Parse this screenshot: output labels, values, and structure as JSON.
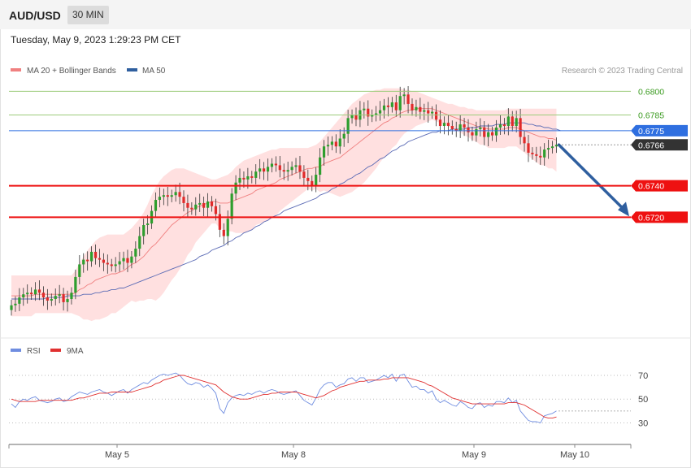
{
  "header": {
    "symbol": "AUD/USD",
    "timeframe": "30 MIN",
    "datetime": "Tuesday, May 9, 2023 1:29:23 PM CET"
  },
  "legend": {
    "ma20": "MA 20 + Bollinger Bands",
    "ma50": "MA 50",
    "credit": "Research © 2023 Trading Central",
    "rsi": "RSI",
    "rsi_ma": "9MA"
  },
  "colors": {
    "up": "#2e9e2e",
    "down": "#e02a2a",
    "ma20": "#f08080",
    "ma50": "#5b6bb5",
    "band": "#ffd6d6",
    "resistance": "#9ccc7a",
    "pivot": "#2f6fe0",
    "support": "#ee1111",
    "last": "#333333",
    "arrow": "#2f5f9f",
    "rsi": "#6f8de0",
    "rsi_ma": "#e03030"
  },
  "chart_data": [
    {
      "type": "candlestick",
      "title": "AUD/USD",
      "ylim": [
        0.6652,
        0.6809
      ],
      "x_labels": [
        "May 5",
        "May 8",
        "May 9",
        "May 10"
      ],
      "levels": [
        {
          "value": 0.68,
          "label": "0.6800",
          "kind": "resistance"
        },
        {
          "value": 0.6785,
          "label": "0.6785",
          "kind": "resistance"
        },
        {
          "value": 0.6775,
          "label": "0.6775",
          "kind": "pivot"
        },
        {
          "value": 0.6766,
          "label": "0.6766",
          "kind": "last"
        },
        {
          "value": 0.674,
          "label": "0.6740",
          "kind": "support"
        },
        {
          "value": 0.672,
          "label": "0.6720",
          "kind": "support"
        }
      ],
      "forecast_arrow": {
        "from": 0.6766,
        "to": 0.672
      },
      "close": [
        0.6664,
        0.6665,
        0.6669,
        0.6671,
        0.6672,
        0.6671,
        0.6674,
        0.6672,
        0.6669,
        0.6667,
        0.6668,
        0.667,
        0.6671,
        0.6666,
        0.6668,
        0.6672,
        0.6682,
        0.669,
        0.6693,
        0.6692,
        0.6698,
        0.6694,
        0.6693,
        0.6691,
        0.669,
        0.6689,
        0.669,
        0.6692,
        0.6694,
        0.6691,
        0.6695,
        0.67,
        0.6708,
        0.6715,
        0.6716,
        0.6724,
        0.6731,
        0.6733,
        0.6734,
        0.6733,
        0.6734,
        0.6736,
        0.6733,
        0.6729,
        0.6726,
        0.6725,
        0.6728,
        0.6729,
        0.6726,
        0.673,
        0.6727,
        0.6722,
        0.6712,
        0.6708,
        0.6719,
        0.6735,
        0.6742,
        0.6745,
        0.6744,
        0.6746,
        0.6745,
        0.6749,
        0.6751,
        0.6749,
        0.6752,
        0.6754,
        0.6753,
        0.675,
        0.6749,
        0.675,
        0.6752,
        0.6753,
        0.6749,
        0.6745,
        0.6743,
        0.674,
        0.6747,
        0.6758,
        0.6765,
        0.6766,
        0.6768,
        0.6765,
        0.677,
        0.6773,
        0.6783,
        0.6785,
        0.6782,
        0.6788,
        0.6789,
        0.6784,
        0.6785,
        0.6786,
        0.6788,
        0.6791,
        0.679,
        0.6793,
        0.6788,
        0.6797,
        0.6798,
        0.6792,
        0.6788,
        0.679,
        0.6787,
        0.6788,
        0.6786,
        0.6787,
        0.6782,
        0.6778,
        0.678,
        0.6778,
        0.6776,
        0.6775,
        0.6779,
        0.6777,
        0.6774,
        0.6772,
        0.6776,
        0.6777,
        0.6771,
        0.6774,
        0.6772,
        0.6777,
        0.6779,
        0.6778,
        0.6784,
        0.6778,
        0.6783,
        0.6771,
        0.6767,
        0.6761,
        0.676,
        0.6759,
        0.6758,
        0.6763,
        0.6764,
        0.6765,
        0.6766
      ],
      "ma20": [
        0.667,
        0.667,
        0.667,
        0.667,
        0.667,
        0.667,
        0.6671,
        0.6671,
        0.6671,
        0.6671,
        0.6671,
        0.6671,
        0.6671,
        0.6671,
        0.6671,
        0.6671,
        0.6672,
        0.6674,
        0.6675,
        0.6677,
        0.6678,
        0.668,
        0.6681,
        0.6682,
        0.6683,
        0.6684,
        0.6684,
        0.6685,
        0.6686,
        0.6688,
        0.669,
        0.6691,
        0.6693,
        0.6695,
        0.6698,
        0.6701,
        0.6703,
        0.6706,
        0.6709,
        0.6712,
        0.6715,
        0.6717,
        0.6719,
        0.6721,
        0.6723,
        0.6724,
        0.6726,
        0.6727,
        0.6728,
        0.6729,
        0.673,
        0.673,
        0.6729,
        0.6729,
        0.6729,
        0.673,
        0.6731,
        0.6732,
        0.6733,
        0.6734,
        0.6735,
        0.6737,
        0.6738,
        0.6739,
        0.674,
        0.6741,
        0.6742,
        0.6744,
        0.6745,
        0.6746,
        0.6747,
        0.6748,
        0.6749,
        0.675,
        0.6751,
        0.6751,
        0.6752,
        0.6752,
        0.6754,
        0.6755,
        0.6756,
        0.6757,
        0.6758,
        0.676,
        0.6762,
        0.6764,
        0.6766,
        0.6768,
        0.677,
        0.6772,
        0.6774,
        0.6776,
        0.6778,
        0.678,
        0.6781,
        0.6783,
        0.6784,
        0.6786,
        0.6787,
        0.6788,
        0.6788,
        0.6789,
        0.6789,
        0.6789,
        0.6789,
        0.6789,
        0.6788,
        0.6787,
        0.6786,
        0.6785,
        0.6784,
        0.6783,
        0.6782,
        0.6781,
        0.678,
        0.6779,
        0.6778,
        0.6777,
        0.6777,
        0.6776,
        0.6776,
        0.6776,
        0.6776,
        0.6776,
        0.6777,
        0.6777,
        0.6777,
        0.6776,
        0.6775,
        0.6774,
        0.6773,
        0.6772,
        0.6771,
        0.6771,
        0.677,
        0.677,
        0.6769
      ],
      "ma50": [
        0.6668,
        0.6668,
        0.6668,
        0.6668,
        0.6668,
        0.6668,
        0.6668,
        0.6668,
        0.6668,
        0.6669,
        0.6669,
        0.6669,
        0.6669,
        0.6669,
        0.667,
        0.667,
        0.667,
        0.667,
        0.6671,
        0.6671,
        0.6671,
        0.6672,
        0.6672,
        0.6673,
        0.6673,
        0.6674,
        0.6674,
        0.6675,
        0.6675,
        0.6676,
        0.6677,
        0.6678,
        0.6679,
        0.668,
        0.6681,
        0.6682,
        0.6683,
        0.6684,
        0.6685,
        0.6686,
        0.6687,
        0.6688,
        0.6689,
        0.669,
        0.6691,
        0.6692,
        0.6693,
        0.6695,
        0.6696,
        0.6697,
        0.6699,
        0.67,
        0.6701,
        0.6702,
        0.6704,
        0.6705,
        0.6707,
        0.6708,
        0.671,
        0.6711,
        0.6712,
        0.6714,
        0.6715,
        0.6717,
        0.6718,
        0.672,
        0.6721,
        0.6722,
        0.6724,
        0.6725,
        0.6726,
        0.6727,
        0.6728,
        0.6729,
        0.673,
        0.6731,
        0.6732,
        0.6734,
        0.6735,
        0.6736,
        0.6738,
        0.6739,
        0.6741,
        0.6742,
        0.6744,
        0.6745,
        0.6747,
        0.6748,
        0.675,
        0.6752,
        0.6753,
        0.6755,
        0.6757,
        0.6758,
        0.676,
        0.6762,
        0.6763,
        0.6765,
        0.6766,
        0.6768,
        0.6769,
        0.677,
        0.6771,
        0.6772,
        0.6773,
        0.6774,
        0.6774,
        0.6775,
        0.6775,
        0.6775,
        0.6776,
        0.6776,
        0.6776,
        0.6776,
        0.6777,
        0.6777,
        0.6777,
        0.6778,
        0.6778,
        0.6778,
        0.6778,
        0.6779,
        0.6779,
        0.6779,
        0.678,
        0.678,
        0.678,
        0.678,
        0.678,
        0.6779,
        0.6779,
        0.6778,
        0.6778,
        0.6777,
        0.6777,
        0.6776,
        0.6776,
        0.6775
      ],
      "bb_upper": [
        0.6683,
        0.6683,
        0.6683,
        0.6683,
        0.6683,
        0.6683,
        0.6683,
        0.6683,
        0.6683,
        0.6683,
        0.6683,
        0.6683,
        0.6683,
        0.6683,
        0.6683,
        0.6683,
        0.6686,
        0.6691,
        0.6695,
        0.6699,
        0.6702,
        0.6705,
        0.6707,
        0.6708,
        0.6709,
        0.6709,
        0.6709,
        0.6709,
        0.6709,
        0.6711,
        0.6713,
        0.6716,
        0.6719,
        0.6723,
        0.6728,
        0.6734,
        0.6739,
        0.6743,
        0.6746,
        0.6748,
        0.675,
        0.6751,
        0.6751,
        0.6751,
        0.675,
        0.6749,
        0.6748,
        0.6747,
        0.6746,
        0.6745,
        0.6744,
        0.6744,
        0.6745,
        0.6746,
        0.6747,
        0.6749,
        0.6752,
        0.6754,
        0.6756,
        0.6757,
        0.6758,
        0.6759,
        0.676,
        0.6761,
        0.6762,
        0.6763,
        0.6763,
        0.6764,
        0.6764,
        0.6764,
        0.6764,
        0.6764,
        0.6764,
        0.6764,
        0.6764,
        0.6765,
        0.6766,
        0.6768,
        0.6771,
        0.6774,
        0.6777,
        0.678,
        0.6783,
        0.6786,
        0.6789,
        0.6792,
        0.6794,
        0.6796,
        0.6798,
        0.6799,
        0.68,
        0.6801,
        0.6801,
        0.6802,
        0.6802,
        0.6802,
        0.6802,
        0.6802,
        0.6801,
        0.6801,
        0.68,
        0.68,
        0.6799,
        0.6798,
        0.6797,
        0.6796,
        0.6795,
        0.6794,
        0.6793,
        0.6792,
        0.6792,
        0.6791,
        0.679,
        0.679,
        0.6789,
        0.6789,
        0.6788,
        0.6788,
        0.6788,
        0.6788,
        0.6788,
        0.6788,
        0.6788,
        0.6788,
        0.6789,
        0.6789,
        0.6789,
        0.6789,
        0.6789,
        0.6789,
        0.6789,
        0.6789,
        0.6789,
        0.6789,
        0.6789,
        0.6789,
        0.6789
      ],
      "bb_lower": [
        0.6657,
        0.6657,
        0.6657,
        0.6657,
        0.6657,
        0.6657,
        0.6659,
        0.6659,
        0.6659,
        0.6659,
        0.6659,
        0.6659,
        0.6659,
        0.6659,
        0.6659,
        0.6659,
        0.6658,
        0.6657,
        0.6655,
        0.6655,
        0.6654,
        0.6655,
        0.6655,
        0.6656,
        0.6657,
        0.6659,
        0.6659,
        0.6661,
        0.6663,
        0.6665,
        0.6667,
        0.6666,
        0.6667,
        0.6667,
        0.6668,
        0.6668,
        0.6667,
        0.6669,
        0.6672,
        0.6676,
        0.668,
        0.6683,
        0.6687,
        0.6691,
        0.6696,
        0.6699,
        0.6704,
        0.6707,
        0.671,
        0.6713,
        0.6716,
        0.6716,
        0.6713,
        0.6712,
        0.6711,
        0.6711,
        0.671,
        0.671,
        0.671,
        0.6711,
        0.6712,
        0.6715,
        0.6716,
        0.6717,
        0.6718,
        0.6719,
        0.6721,
        0.6724,
        0.6726,
        0.6728,
        0.673,
        0.6732,
        0.6734,
        0.6736,
        0.6738,
        0.6737,
        0.6738,
        0.6736,
        0.6737,
        0.6736,
        0.6735,
        0.6734,
        0.6733,
        0.6734,
        0.6735,
        0.6736,
        0.6738,
        0.674,
        0.6742,
        0.6745,
        0.6748,
        0.6751,
        0.6755,
        0.6758,
        0.676,
        0.6764,
        0.6766,
        0.677,
        0.6773,
        0.6775,
        0.6776,
        0.6778,
        0.6779,
        0.678,
        0.6781,
        0.6782,
        0.6781,
        0.678,
        0.6779,
        0.6778,
        0.6776,
        0.6775,
        0.6774,
        0.6772,
        0.6771,
        0.6769,
        0.6768,
        0.6766,
        0.6766,
        0.6764,
        0.6764,
        0.6764,
        0.6764,
        0.6764,
        0.6765,
        0.6765,
        0.6765,
        0.6763,
        0.6761,
        0.6759,
        0.6757,
        0.6755,
        0.6753,
        0.6753,
        0.6751,
        0.6751,
        0.6749
      ]
    },
    {
      "type": "line",
      "title": "RSI",
      "ylim": [
        18,
        83
      ],
      "y_ticks": [
        30,
        50,
        70
      ],
      "series": [
        {
          "name": "RSI",
          "values": [
            46,
            43,
            48,
            50,
            49,
            51,
            52,
            49,
            48,
            47,
            48,
            50,
            51,
            48,
            49,
            52,
            54,
            56,
            55,
            54,
            56,
            57,
            58,
            56,
            55,
            53,
            55,
            57,
            58,
            55,
            58,
            60,
            62,
            64,
            63,
            66,
            68,
            70,
            71,
            70,
            71,
            72,
            70,
            66,
            63,
            62,
            64,
            63,
            60,
            62,
            59,
            55,
            42,
            38,
            47,
            51,
            53,
            54,
            53,
            55,
            54,
            56,
            57,
            55,
            57,
            58,
            57,
            55,
            54,
            55,
            56,
            57,
            53,
            49,
            47,
            45,
            51,
            58,
            62,
            64,
            64,
            60,
            62,
            63,
            67,
            68,
            65,
            68,
            68,
            64,
            65,
            66,
            68,
            70,
            68,
            71,
            65,
            70,
            71,
            65,
            60,
            61,
            58,
            58,
            55,
            57,
            50,
            47,
            49,
            47,
            45,
            44,
            48,
            46,
            43,
            42,
            46,
            47,
            43,
            45,
            44,
            48,
            48,
            47,
            51,
            47,
            49,
            40,
            36,
            32,
            31,
            31,
            30,
            36,
            37,
            38,
            40
          ]
        },
        {
          "name": "9MA",
          "values": [
            50,
            49,
            48,
            48,
            48,
            48,
            48,
            49,
            49,
            49,
            49,
            49,
            49,
            49,
            49,
            49,
            50,
            51,
            51,
            52,
            53,
            54,
            55,
            55,
            55,
            56,
            56,
            56,
            56,
            56,
            56,
            57,
            58,
            59,
            60,
            61,
            63,
            64,
            66,
            67,
            68,
            69,
            70,
            70,
            69,
            68,
            67,
            66,
            65,
            64,
            63,
            62,
            59,
            56,
            54,
            52,
            51,
            50,
            50,
            50,
            51,
            52,
            53,
            54,
            54,
            55,
            55,
            56,
            56,
            56,
            56,
            56,
            55,
            54,
            53,
            52,
            51,
            52,
            53,
            55,
            57,
            58,
            60,
            61,
            62,
            63,
            64,
            65,
            65,
            66,
            66,
            66,
            66,
            67,
            67,
            68,
            68,
            68,
            68,
            68,
            67,
            66,
            65,
            64,
            62,
            61,
            59,
            57,
            55,
            53,
            51,
            50,
            49,
            48,
            47,
            46,
            46,
            46,
            46,
            46,
            46,
            46,
            46,
            46,
            47,
            47,
            47,
            46,
            45,
            43,
            41,
            39,
            37,
            35,
            34,
            34,
            35
          ]
        }
      ]
    }
  ]
}
